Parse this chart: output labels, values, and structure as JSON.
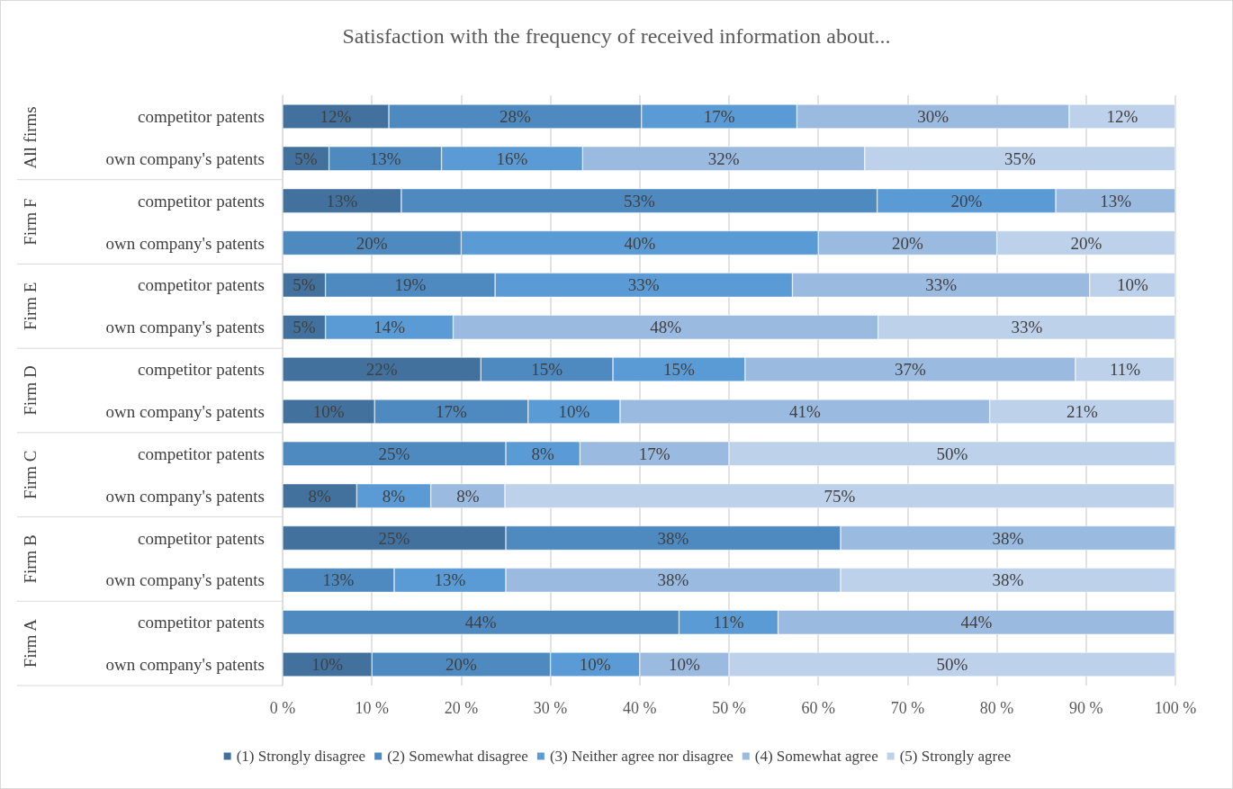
{
  "chart_data": {
    "type": "bar",
    "orientation": "horizontal",
    "stacked": true,
    "title": "Satisfaction with the frequency of received information about...",
    "categories": [
      "competitor patents",
      "own company's patents",
      "competitor patents",
      "own company's patents",
      "competitor patents",
      "own company's patents",
      "competitor patents",
      "own company's patents",
      "competitor patents",
      "own company's patents",
      "competitor patents",
      "own company's patents",
      "competitor patents",
      "own company's patents"
    ],
    "annotations": [
      "All firms",
      "Firm F",
      "Firm E",
      "Firm D",
      "Firm C",
      "Firm B",
      "Firm A"
    ],
    "series": [
      {
        "name": "(1) Strongly disagree",
        "color": "#41719c",
        "values": [
          11.9,
          5.2,
          13.3,
          null,
          4.8,
          4.8,
          22.2,
          10.3,
          null,
          8.3,
          25,
          null,
          null,
          10
        ],
        "value_labels": [
          "12%",
          "5%",
          "13%",
          null,
          "5%",
          "5%",
          "22%",
          "10%",
          null,
          "8%",
          "25%",
          null,
          null,
          "10%"
        ]
      },
      {
        "name": "(2) Somewhat disagree",
        "color": "#4e89bf",
        "values": [
          28.3,
          12.6,
          53.3,
          20,
          19,
          null,
          14.8,
          17.2,
          25,
          null,
          37.5,
          12.5,
          44.4,
          20
        ],
        "value_labels": [
          "28%",
          "13%",
          "53%",
          "20%",
          "19%",
          null,
          "15%",
          "17%",
          "25%",
          null,
          "38%",
          "13%",
          "44%",
          "20%"
        ]
      },
      {
        "name": "(3) Neither agree nor disagree",
        "color": "#5b9bd5",
        "values": [
          17.4,
          15.8,
          20,
          40,
          33.3,
          14.3,
          14.8,
          10.3,
          8.3,
          8.3,
          null,
          12.5,
          11.1,
          10
        ],
        "value_labels": [
          "17%",
          "16%",
          "20%",
          "40%",
          "33%",
          "14%",
          "15%",
          "10%",
          "8%",
          "8%",
          null,
          "13%",
          "11%",
          "10%"
        ]
      },
      {
        "name": "(4) Somewhat agree",
        "color": "#9bbae0",
        "values": [
          30.5,
          31.6,
          13.4,
          20,
          33.3,
          47.6,
          37,
          41.4,
          16.7,
          8.3,
          37.5,
          37.5,
          44.4,
          10
        ],
        "value_labels": [
          "30%",
          "32%",
          "13%",
          "20%",
          "33%",
          "48%",
          "37%",
          "41%",
          "17%",
          "8%",
          "38%",
          "38%",
          "44%",
          "10%"
        ]
      },
      {
        "name": "(5) Strongly agree",
        "color": "#bdd1ea",
        "values": [
          11.9,
          34.8,
          null,
          20,
          9.6,
          33.3,
          11.1,
          20.7,
          50,
          75,
          null,
          37.5,
          null,
          50
        ],
        "value_labels": [
          "12%",
          "35%",
          null,
          "20%",
          "10%",
          "33%",
          "11%",
          "21%",
          "50%",
          "75%",
          null,
          "38%",
          null,
          "50%"
        ]
      }
    ],
    "xlim": [
      0,
      100
    ],
    "xticks": [
      {
        "value": 0,
        "label": "0 %"
      },
      {
        "value": 10,
        "label": "10 %"
      },
      {
        "value": 20,
        "label": "20 %"
      },
      {
        "value": 30,
        "label": "30 %"
      },
      {
        "value": 40,
        "label": "40 %"
      },
      {
        "value": 50,
        "label": "50 %"
      },
      {
        "value": 60,
        "label": "60 %"
      },
      {
        "value": 70,
        "label": "70 %"
      },
      {
        "value": 80,
        "label": "80 %"
      },
      {
        "value": 90,
        "label": "90 %"
      },
      {
        "value": 100,
        "label": "100 %"
      }
    ],
    "grid": "x",
    "legend": "bottom"
  }
}
